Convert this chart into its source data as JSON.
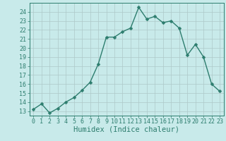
{
  "xlabel": "Humidex (Indice chaleur)",
  "x": [
    0,
    1,
    2,
    3,
    4,
    5,
    6,
    7,
    8,
    9,
    10,
    11,
    12,
    13,
    14,
    15,
    16,
    17,
    18,
    19,
    20,
    21,
    22,
    23
  ],
  "y": [
    13.2,
    13.8,
    12.8,
    13.3,
    14.0,
    14.5,
    15.3,
    16.2,
    18.2,
    21.2,
    21.2,
    21.8,
    22.2,
    24.5,
    23.2,
    23.5,
    22.8,
    23.0,
    22.2,
    19.2,
    20.4,
    19.0,
    16.0,
    15.2
  ],
  "line_color": "#2d7d6e",
  "marker": "D",
  "marker_size": 2.5,
  "bg_color": "#c8eaea",
  "grid_color": "#adc8c8",
  "axes_color": "#2d7d6e",
  "tick_label_color": "#2d7d6e",
  "ylim": [
    12.5,
    25.0
  ],
  "yticks": [
    13,
    14,
    15,
    16,
    17,
    18,
    19,
    20,
    21,
    22,
    23,
    24
  ],
  "xlim": [
    -0.5,
    23.5
  ],
  "xticks": [
    0,
    1,
    2,
    3,
    4,
    5,
    6,
    7,
    8,
    9,
    10,
    11,
    12,
    13,
    14,
    15,
    16,
    17,
    18,
    19,
    20,
    21,
    22,
    23
  ],
  "xlabel_fontsize": 7.5,
  "tick_fontsize": 6.0
}
